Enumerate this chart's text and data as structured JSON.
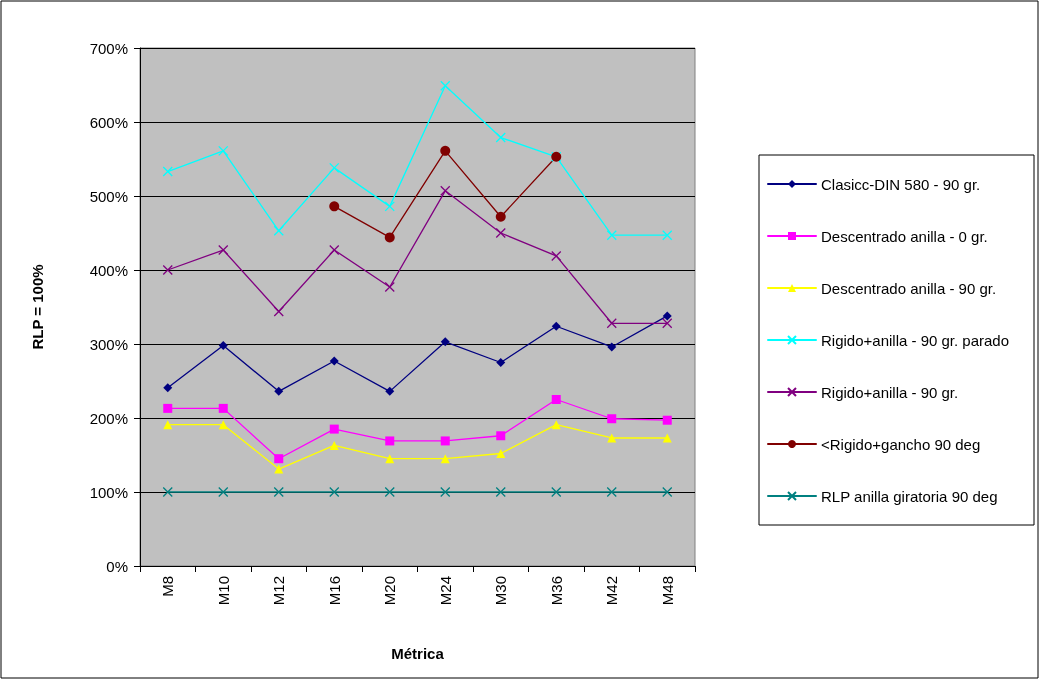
{
  "chart_data": {
    "type": "line",
    "xlabel": "Métrica",
    "ylabel": "RLP = 100%",
    "categories": [
      "M8",
      "M10",
      "M12",
      "M16",
      "M20",
      "M24",
      "M30",
      "M36",
      "M42",
      "M48"
    ],
    "ylim": [
      0,
      700
    ],
    "yticks": [
      {
        "value": 0,
        "label": "0%"
      },
      {
        "value": 100,
        "label": "100%"
      },
      {
        "value": 200,
        "label": "200%"
      },
      {
        "value": 300,
        "label": "300%"
      },
      {
        "value": 400,
        "label": "400%"
      },
      {
        "value": 500,
        "label": "500%"
      },
      {
        "value": 600,
        "label": "600%"
      },
      {
        "value": 700,
        "label": "700%"
      }
    ],
    "grid": "y",
    "legend": "right",
    "series": [
      {
        "name": "Clasicc-DIN 580 - 90 gr.",
        "color": "#000080",
        "marker": "diamond",
        "values": [
          241,
          298,
          236,
          277,
          236,
          303,
          275,
          324,
          296,
          338
        ]
      },
      {
        "name": "Descentrado anilla - 0 gr.",
        "color": "#ff00ff",
        "marker": "square",
        "values": [
          213,
          213,
          145,
          185,
          169,
          169,
          176,
          225,
          199,
          197
        ]
      },
      {
        "name": "Descentrado anilla - 90 gr.",
        "color": "#ffff00",
        "marker": "triangle",
        "values": [
          191,
          191,
          131,
          163,
          145,
          145,
          152,
          191,
          173,
          173
        ]
      },
      {
        "name": "Rigido+anilla - 90 gr. parado",
        "color": "#00ffff",
        "marker": "cross",
        "values": [
          533,
          561,
          453,
          538,
          486,
          649,
          579,
          553,
          447,
          447
        ]
      },
      {
        "name": "Rigido+anilla - 90 gr.",
        "color": "#800080",
        "marker": "cross",
        "values": [
          400,
          427,
          344,
          427,
          377,
          507,
          450,
          419,
          328,
          328
        ]
      },
      {
        "name": "<Rigido+gancho 90 deg",
        "color": "#800000",
        "marker": "circle",
        "values": [
          null,
          null,
          null,
          486,
          444,
          561,
          472,
          553,
          null,
          null
        ]
      },
      {
        "name": "RLP anilla giratoria 90 deg",
        "color": "#008080",
        "marker": "cross",
        "values": [
          100,
          100,
          100,
          100,
          100,
          100,
          100,
          100,
          100,
          100
        ]
      }
    ]
  }
}
